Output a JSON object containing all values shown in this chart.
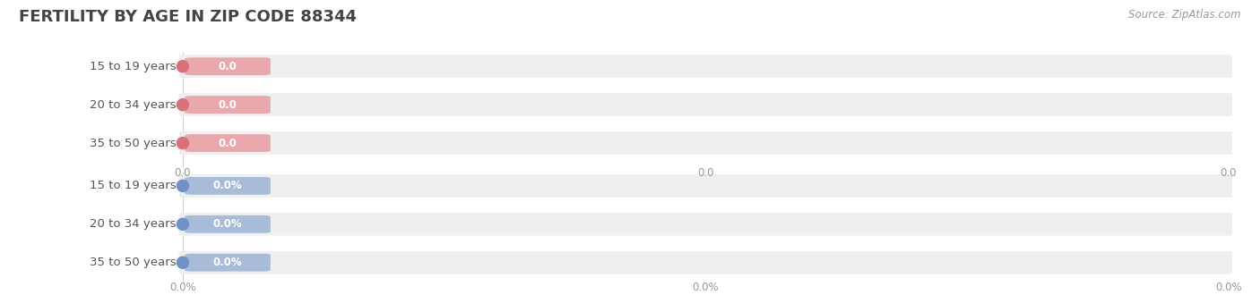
{
  "title": "FERTILITY BY AGE IN ZIP CODE 88344",
  "source": "Source: ZipAtlas.com",
  "background_color": "#ffffff",
  "fig_width": 14.06,
  "fig_height": 3.3,
  "top_group": {
    "labels": [
      "15 to 19 years",
      "20 to 34 years",
      "35 to 50 years"
    ],
    "values": [
      0.0,
      0.0,
      0.0
    ],
    "value_labels": [
      "0.0",
      "0.0",
      "0.0"
    ],
    "bar_bg_color": "#efefef",
    "circle_color": "#d9717a",
    "pill_color": "#e8a8ac",
    "text_color": "#555555",
    "value_text_color": "#ffffff",
    "axis_label": "0.0"
  },
  "bottom_group": {
    "labels": [
      "15 to 19 years",
      "20 to 34 years",
      "35 to 50 years"
    ],
    "values": [
      0.0,
      0.0,
      0.0
    ],
    "value_labels": [
      "0.0%",
      "0.0%",
      "0.0%"
    ],
    "bar_bg_color": "#efefef",
    "circle_color": "#7090c8",
    "pill_color": "#a8bcd8",
    "text_color": "#555555",
    "value_text_color": "#ffffff",
    "axis_label": "0.0%"
  },
  "title_fontsize": 13,
  "label_fontsize": 9.5,
  "value_fontsize": 8.5,
  "source_fontsize": 8.5,
  "axis_tick_fontsize": 8.5
}
